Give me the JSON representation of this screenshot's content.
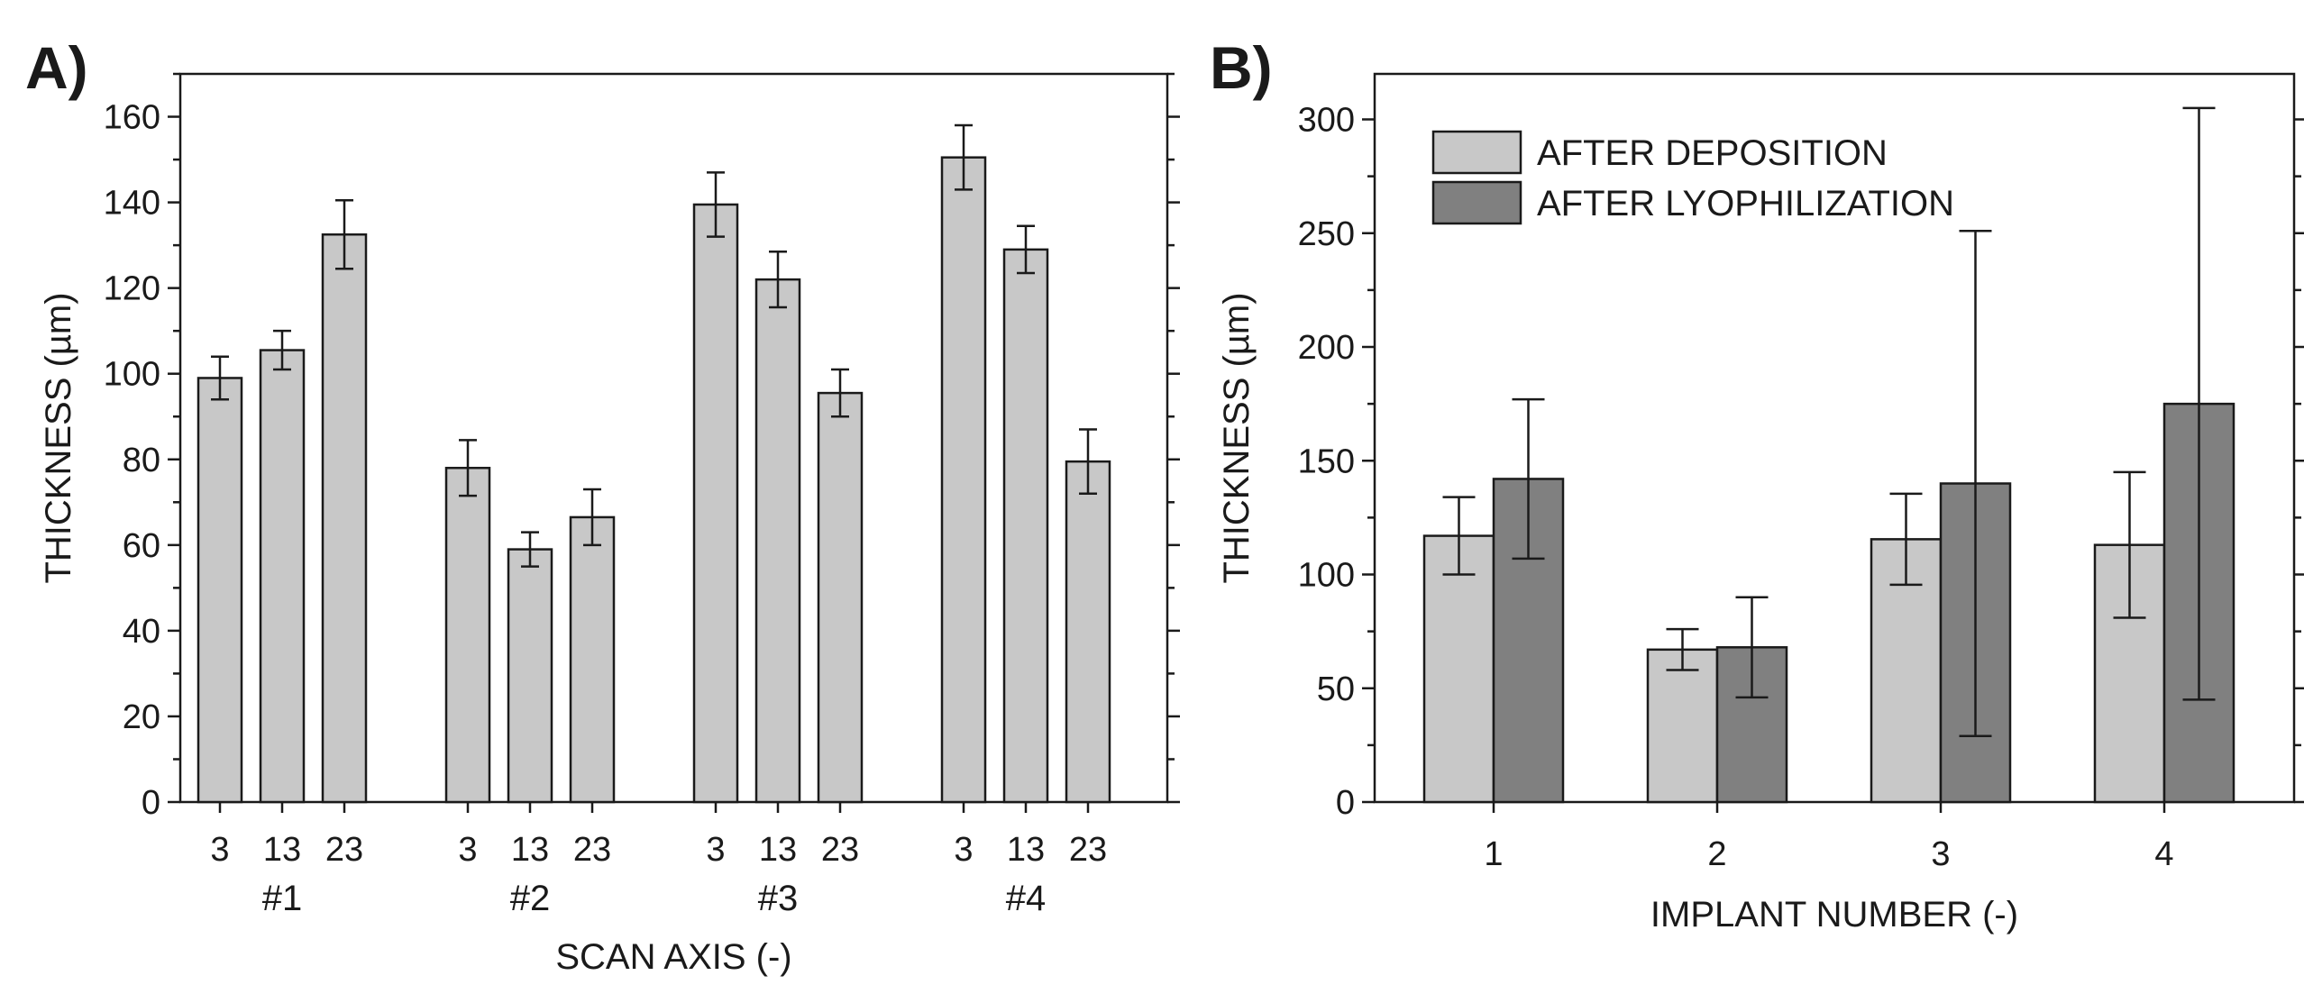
{
  "chart_data": [
    {
      "type": "bar",
      "panel_label": "A)",
      "title": "",
      "xlabel": "SCAN AXIS (-)",
      "ylabel": "THICKNESS (µm)",
      "ylim": [
        0,
        170
      ],
      "yticks": [
        0,
        20,
        40,
        60,
        80,
        100,
        120,
        140,
        160
      ],
      "groups": [
        {
          "label": "#1",
          "categories": [
            "3",
            "13",
            "23"
          ],
          "values": [
            99,
            105.5,
            132.5
          ],
          "errors": [
            5,
            4.5,
            8
          ]
        },
        {
          "label": "#2",
          "categories": [
            "3",
            "13",
            "23"
          ],
          "values": [
            78,
            59,
            66.5
          ],
          "errors": [
            6.5,
            4,
            6.5
          ]
        },
        {
          "label": "#3",
          "categories": [
            "3",
            "13",
            "23"
          ],
          "values": [
            139.5,
            122,
            95.5
          ],
          "errors": [
            7.5,
            6.5,
            5.5
          ]
        },
        {
          "label": "#4",
          "categories": [
            "3",
            "13",
            "23"
          ],
          "values": [
            150.5,
            129,
            79.5
          ],
          "errors": [
            7.5,
            5.5,
            7.5
          ]
        }
      ],
      "bar_color": "#c8c8c8",
      "grid": false
    },
    {
      "type": "bar",
      "panel_label": "B)",
      "title": "",
      "xlabel": "IMPLANT NUMBER (-)",
      "ylabel": "THICKNESS (µm)",
      "ylim": [
        0,
        320
      ],
      "yticks": [
        0,
        50,
        100,
        150,
        200,
        250,
        300
      ],
      "categories": [
        "1",
        "2",
        "3",
        "4"
      ],
      "series": [
        {
          "name": "AFTER DEPOSITION",
          "values": [
            117,
            67,
            115.5,
            113
          ],
          "errors": [
            17,
            9,
            20,
            32
          ],
          "color": "#c8c8c8"
        },
        {
          "name": "AFTER LYOPHILIZATION",
          "values": [
            142,
            68,
            140,
            175
          ],
          "errors": [
            35,
            22,
            111,
            130
          ],
          "color": "#808080"
        }
      ],
      "legend_position": "top-left",
      "grid": false
    }
  ]
}
